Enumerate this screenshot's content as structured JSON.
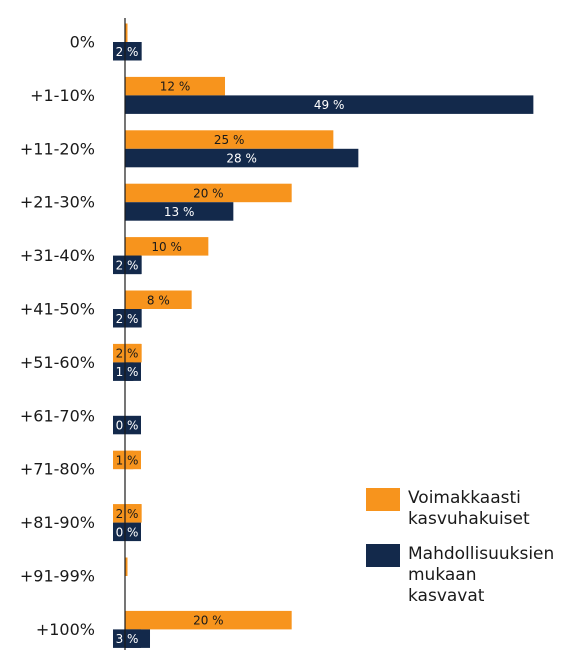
{
  "chart_data": {
    "type": "hbar",
    "categories": [
      "0%",
      "+1-10%",
      "+11-20%",
      "+21-30%",
      "+31-40%",
      "+41-50%",
      "+51-60%",
      "+61-70%",
      "+71-80%",
      "+81-90%",
      "+91-99%",
      "+100%"
    ],
    "series": [
      {
        "name": "Voimakkaasti kasvuhakuiset",
        "color": "#f7941d",
        "values": [
          0.3,
          12,
          25,
          20,
          10,
          8,
          2,
          null,
          1,
          2,
          0.3,
          20
        ],
        "value_labels": [
          null,
          "12 %",
          "25 %",
          "20 %",
          "10 %",
          "8 %",
          "2 %",
          null,
          "1 %",
          "2 %",
          null,
          "20 %"
        ]
      },
      {
        "name": "Mahdollisuuksien mukaan kasvavat",
        "color": "#13294b",
        "values": [
          2,
          49,
          28,
          13,
          2,
          2,
          1,
          0,
          null,
          0,
          null,
          3
        ],
        "value_labels": [
          "2 %",
          "49 %",
          "28 %",
          "13 %",
          "2 %",
          "2 %",
          "1 %",
          "0 %",
          null,
          "0 %",
          null,
          "3 %"
        ]
      }
    ],
    "xlim": [
      0,
      50
    ],
    "legend": "right"
  }
}
